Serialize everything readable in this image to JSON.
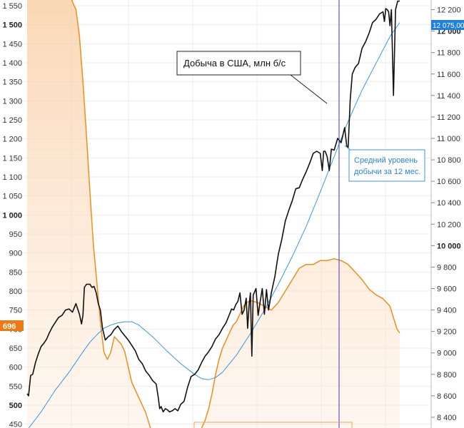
{
  "chart_data": {
    "type": "line",
    "title": "",
    "left_axis": {
      "ticks": [
        {
          "v": 1550,
          "label": "1 550",
          "bold": false
        },
        {
          "v": 1500,
          "label": "1 500",
          "bold": true
        },
        {
          "v": 1450,
          "label": "1 450",
          "bold": false
        },
        {
          "v": 1400,
          "label": "1 400",
          "bold": false
        },
        {
          "v": 1350,
          "label": "1 350",
          "bold": false
        },
        {
          "v": 1300,
          "label": "1 300",
          "bold": false
        },
        {
          "v": 1250,
          "label": "1 250",
          "bold": false
        },
        {
          "v": 1200,
          "label": "1 200",
          "bold": false
        },
        {
          "v": 1150,
          "label": "1 150",
          "bold": false
        },
        {
          "v": 1100,
          "label": "1 100",
          "bold": false
        },
        {
          "v": 1050,
          "label": "1 050",
          "bold": false
        },
        {
          "v": 1000,
          "label": "1 000",
          "bold": true
        },
        {
          "v": 950,
          "label": "950",
          "bold": false
        },
        {
          "v": 900,
          "label": "900",
          "bold": false
        },
        {
          "v": 850,
          "label": "850",
          "bold": false
        },
        {
          "v": 800,
          "label": "800",
          "bold": false
        },
        {
          "v": 750,
          "label": "750",
          "bold": false
        },
        {
          "v": 700,
          "label": "700",
          "bold": false
        },
        {
          "v": 650,
          "label": "650",
          "bold": false
        },
        {
          "v": 600,
          "label": "600",
          "bold": false
        },
        {
          "v": 550,
          "label": "550",
          "bold": false
        },
        {
          "v": 500,
          "label": "500",
          "bold": true
        },
        {
          "v": 450,
          "label": "450",
          "bold": false
        }
      ],
      "ylim": [
        440,
        1565
      ]
    },
    "right_axis": {
      "ticks": [
        {
          "v": 12200,
          "label": "12 200",
          "bold": false
        },
        {
          "v": 12000,
          "label": "12 000",
          "bold": true
        },
        {
          "v": 11800,
          "label": "11 800",
          "bold": false
        },
        {
          "v": 11600,
          "label": "11 600",
          "bold": false
        },
        {
          "v": 11400,
          "label": "11 400",
          "bold": false
        },
        {
          "v": 11200,
          "label": "11 200",
          "bold": false
        },
        {
          "v": 11000,
          "label": "11 000",
          "bold": false
        },
        {
          "v": 10800,
          "label": "10 800",
          "bold": false
        },
        {
          "v": 10600,
          "label": "10 600",
          "bold": false
        },
        {
          "v": 10400,
          "label": "10 400",
          "bold": false
        },
        {
          "v": 10200,
          "label": "10 200",
          "bold": false
        },
        {
          "v": 10000,
          "label": "10 000",
          "bold": true
        },
        {
          "v": 9800,
          "label": "9 800",
          "bold": false
        },
        {
          "v": 9600,
          "label": "9 600",
          "bold": false
        },
        {
          "v": 9400,
          "label": "9 400",
          "bold": false
        },
        {
          "v": 9200,
          "label": "9 200",
          "bold": false
        },
        {
          "v": 9000,
          "label": "9 000",
          "bold": false
        },
        {
          "v": 8800,
          "label": "8 800",
          "bold": false
        },
        {
          "v": 8600,
          "label": "8 600",
          "bold": false
        },
        {
          "v": 8400,
          "label": "8 400",
          "bold": false
        }
      ],
      "ylim": [
        8300,
        12290
      ]
    },
    "left_tag": {
      "label": "696",
      "value": 696,
      "color": "#f07a10"
    },
    "right_tag": {
      "label": "12 075,00",
      "value": 12075,
      "color": "#1f7fe0"
    },
    "series": [
      {
        "name": "Добыча в США, млн б/с",
        "axis": "right",
        "color": "#111111",
        "x": [
          0,
          2,
          5,
          8,
          12,
          16,
          20,
          24,
          28,
          32,
          36,
          40,
          45,
          50,
          55,
          60,
          65,
          70,
          75,
          78,
          80,
          82,
          85,
          88,
          90,
          93,
          96,
          99,
          102,
          105,
          108,
          112,
          116,
          120,
          125,
          130,
          135,
          140,
          145,
          150,
          155,
          160,
          165,
          170,
          175,
          180,
          185,
          188,
          190,
          192,
          195,
          198,
          201,
          204,
          208,
          212,
          216,
          220,
          225,
          230,
          235,
          240,
          245,
          250,
          255,
          260,
          265,
          270,
          275,
          280,
          285,
          290,
          293,
          296,
          299,
          302,
          305,
          308,
          311,
          314,
          316,
          318,
          320,
          322,
          324,
          326,
          328,
          331,
          334,
          337,
          340,
          343,
          346,
          350,
          355,
          360,
          365,
          370,
          375,
          380,
          385,
          390,
          395,
          400,
          405,
          410,
          415,
          420,
          423,
          425,
          427,
          430,
          433,
          436,
          440,
          445,
          450,
          455,
          458,
          460,
          463,
          466,
          470,
          475,
          480,
          485,
          490,
          495,
          500,
          505,
          510,
          512,
          514,
          516,
          518,
          520,
          522,
          525,
          528,
          531,
          534
        ],
        "values": [
          8620,
          8600,
          8790,
          8800,
          8910,
          8990,
          9060,
          9090,
          9130,
          9190,
          9240,
          9280,
          9330,
          9350,
          9400,
          9410,
          9380,
          9460,
          9360,
          9270,
          9350,
          9610,
          9640,
          9640,
          9640,
          9610,
          9620,
          9560,
          9460,
          9400,
          9230,
          9120,
          9150,
          9170,
          9220,
          9250,
          9200,
          9160,
          9120,
          9070,
          9020,
          8940,
          8900,
          8830,
          8790,
          8740,
          8710,
          8580,
          8480,
          8500,
          8450,
          8480,
          8470,
          8450,
          8460,
          8480,
          8460,
          8520,
          8550,
          8680,
          8780,
          8800,
          8840,
          8910,
          8970,
          9010,
          9060,
          9130,
          9170,
          9230,
          9280,
          9360,
          9410,
          9400,
          9450,
          9480,
          9560,
          9360,
          9400,
          9510,
          9230,
          9440,
          9560,
          8970,
          9540,
          9570,
          9600,
          9350,
          9480,
          9600,
          9360,
          9590,
          9400,
          9560,
          9710,
          9920,
          10060,
          10230,
          10330,
          10420,
          10530,
          10540,
          10620,
          10690,
          10770,
          10860,
          10880,
          10860,
          10700,
          10880,
          10880,
          10830,
          10700,
          10900,
          10890,
          11000,
          10960,
          11100,
          10930,
          10910,
          11360,
          11600,
          11660,
          11700,
          11840,
          11900,
          11980,
          12080,
          12110,
          12160,
          12180,
          12090,
          12210,
          12200,
          12180,
          12050,
          12200,
          11400,
          12200,
          12280,
          12280
        ]
      },
      {
        "name": "",
        "axis": "left",
        "color": "#f28c1b",
        "fill": true,
        "x": [
          0,
          10,
          20,
          30,
          40,
          50,
          60,
          65,
          70,
          75,
          80,
          85,
          90,
          95,
          100,
          105,
          110,
          115,
          120,
          125,
          130,
          135,
          140,
          145,
          150,
          160,
          170,
          180,
          190,
          200,
          210,
          220,
          230,
          240,
          250,
          255,
          260,
          265,
          270,
          275,
          280,
          285,
          290,
          295,
          300,
          305,
          310,
          315,
          320,
          330,
          340,
          350,
          360,
          370,
          380,
          390,
          400,
          410,
          420,
          430,
          440,
          450,
          460,
          470,
          480,
          490,
          500,
          510,
          520,
          530,
          534
        ],
        "values": [
          1600,
          1600,
          1600,
          1600,
          1600,
          1600,
          1600,
          1560,
          1540,
          1470,
          1350,
          1210,
          1060,
          920,
          820,
          720,
          640,
          620,
          640,
          680,
          670,
          660,
          640,
          600,
          560,
          520,
          480,
          420,
          400,
          400,
          400,
          400,
          400,
          420,
          440,
          460,
          490,
          530,
          580,
          620,
          650,
          670,
          690,
          710,
          720,
          740,
          760,
          770,
          775,
          770,
          760,
          750,
          770,
          800,
          830,
          860,
          870,
          870,
          880,
          880,
          885,
          880,
          870,
          850,
          830,
          805,
          790,
          780,
          760,
          700,
          690
        ]
      },
      {
        "name": "Средний уровень добычи за 12 мес.",
        "axis": "right",
        "color": "#3a96e6",
        "x": [
          0,
          20,
          40,
          60,
          80,
          90,
          100,
          110,
          120,
          130,
          140,
          150,
          160,
          180,
          200,
          220,
          240,
          250,
          260,
          270,
          280,
          300,
          320,
          340,
          360,
          380,
          400,
          420,
          440,
          460,
          480,
          500,
          520,
          534
        ],
        "values": [
          8280,
          8450,
          8650,
          8820,
          9010,
          9100,
          9170,
          9230,
          9260,
          9280,
          9290,
          9290,
          9260,
          9150,
          9020,
          8900,
          8800,
          8760,
          8750,
          8770,
          8820,
          8980,
          9180,
          9400,
          9640,
          9900,
          10180,
          10500,
          10830,
          11160,
          11450,
          11700,
          11950,
          12080
        ]
      }
    ],
    "callouts": [
      {
        "text": "Добыча в США, млн б/с"
      },
      {
        "text": "Средний уровень добычи за 12 мес."
      }
    ],
    "text_lines": {
      "avg_line_1": "Средний уровень",
      "avg_line_2": "добычи за 12 мес."
    }
  }
}
